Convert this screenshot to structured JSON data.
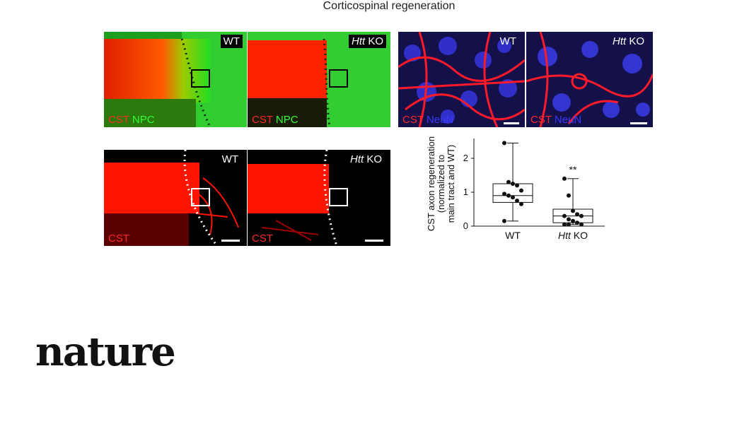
{
  "figure": {
    "title": "Corticospinal regeneration",
    "panels_top": [
      {
        "id": "wt-npc",
        "genotype": "WT",
        "channels": [
          "CST",
          "NPC"
        ]
      },
      {
        "id": "ko-npc",
        "genotype_italic": "Htt",
        "genotype_rest": " KO",
        "channels": [
          "CST",
          "NPC"
        ]
      },
      {
        "id": "wt-neun",
        "genotype": "WT",
        "channels": [
          "CST",
          "NeuN"
        ]
      },
      {
        "id": "ko-neun",
        "genotype_italic": "Htt",
        "genotype_rest": " KO",
        "channels": [
          "CST",
          "NeuN"
        ]
      }
    ],
    "panels_bottom": [
      {
        "id": "wt-cst",
        "genotype": "WT",
        "channels": [
          "CST"
        ]
      },
      {
        "id": "ko-cst",
        "genotype_italic": "Htt",
        "genotype_rest": " KO",
        "channels": [
          "CST"
        ]
      }
    ],
    "colors": {
      "cst": "#ff2a2a",
      "npc": "#33ff33",
      "neun": "#3b3bff"
    }
  },
  "chart_data": {
    "type": "box",
    "ylabel_lines": [
      "CST axon regeneration",
      "(normalized to",
      "main tract and WT)"
    ],
    "ylim": [
      0,
      2.5
    ],
    "yticks": [
      0,
      1,
      2
    ],
    "categories": [
      "WT",
      "Htt KO"
    ],
    "category_italic": [
      "",
      "Htt"
    ],
    "category_rest": [
      "WT",
      " KO"
    ],
    "boxes": [
      {
        "min": 0.15,
        "q1": 0.7,
        "median": 0.9,
        "q3": 1.25,
        "max": 2.45,
        "points": [
          2.45,
          1.3,
          1.25,
          1.2,
          1.05,
          0.95,
          0.9,
          0.85,
          0.75,
          0.65,
          0.15
        ]
      },
      {
        "min": 0.05,
        "q1": 0.1,
        "median": 0.3,
        "q3": 0.5,
        "max": 1.4,
        "points": [
          1.4,
          0.9,
          0.45,
          0.35,
          0.3,
          0.3,
          0.2,
          0.15,
          0.1,
          0.05,
          0.05,
          0.05
        ]
      }
    ],
    "annotation": "**"
  },
  "brand": {
    "logo_text": "nature"
  }
}
